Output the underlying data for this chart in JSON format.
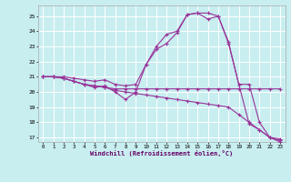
{
  "xlabel": "Windchill (Refroidissement éolien,°C)",
  "bg_color": "#c8eef0",
  "line_color": "#993399",
  "grid_color": "#ffffff",
  "xlim": [
    -0.5,
    23.5
  ],
  "ylim": [
    16.7,
    25.7
  ],
  "yticks": [
    17,
    18,
    19,
    20,
    21,
    22,
    23,
    24,
    25
  ],
  "xticks": [
    0,
    1,
    2,
    3,
    4,
    5,
    6,
    7,
    8,
    9,
    10,
    11,
    12,
    13,
    14,
    15,
    16,
    17,
    18,
    19,
    20,
    21,
    22,
    23
  ],
  "series": [
    {
      "x": [
        0,
        1,
        2,
        3,
        4,
        5,
        6,
        7,
        8,
        9,
        10,
        11,
        12,
        13,
        14,
        15,
        16,
        17,
        18,
        19,
        20,
        21,
        22,
        23
      ],
      "y": [
        21.0,
        21.0,
        20.9,
        20.7,
        20.5,
        20.4,
        20.3,
        20.1,
        20.0,
        19.9,
        19.8,
        19.7,
        19.6,
        19.5,
        19.4,
        19.3,
        19.2,
        19.1,
        19.0,
        18.5,
        18.0,
        17.5,
        17.0,
        16.7
      ]
    },
    {
      "x": [
        0,
        1,
        2,
        3,
        4,
        5,
        6,
        7,
        8,
        9,
        10,
        11,
        12,
        13,
        14,
        15,
        16,
        17,
        18,
        19,
        20,
        21,
        22,
        23
      ],
      "y": [
        21.0,
        21.0,
        20.9,
        20.7,
        20.5,
        20.4,
        20.3,
        20.2,
        20.2,
        20.2,
        20.2,
        20.2,
        20.2,
        20.2,
        20.2,
        20.2,
        20.2,
        20.2,
        20.2,
        20.2,
        20.2,
        20.2,
        20.2,
        20.2
      ]
    },
    {
      "x": [
        0,
        1,
        2,
        3,
        4,
        5,
        6,
        7,
        8,
        9,
        10,
        11,
        12,
        13,
        14,
        15,
        16,
        17,
        18,
        19,
        20,
        21,
        22,
        23
      ],
      "y": [
        21.0,
        21.0,
        20.9,
        20.7,
        20.5,
        20.3,
        20.4,
        20.0,
        19.5,
        20.0,
        21.8,
        22.8,
        23.2,
        23.9,
        25.1,
        25.2,
        25.2,
        25.0,
        23.3,
        20.5,
        17.9,
        17.5,
        17.0,
        16.8
      ]
    },
    {
      "x": [
        0,
        1,
        2,
        3,
        4,
        5,
        6,
        7,
        8,
        9,
        10,
        11,
        12,
        13,
        14,
        15,
        16,
        17,
        18,
        19,
        20,
        21,
        22,
        23
      ],
      "y": [
        21.0,
        21.0,
        21.0,
        20.9,
        20.8,
        20.7,
        20.8,
        20.5,
        20.4,
        20.5,
        21.8,
        23.0,
        23.8,
        24.0,
        25.1,
        25.2,
        24.8,
        25.0,
        23.2,
        20.5,
        20.5,
        18.0,
        17.0,
        16.9
      ]
    }
  ]
}
